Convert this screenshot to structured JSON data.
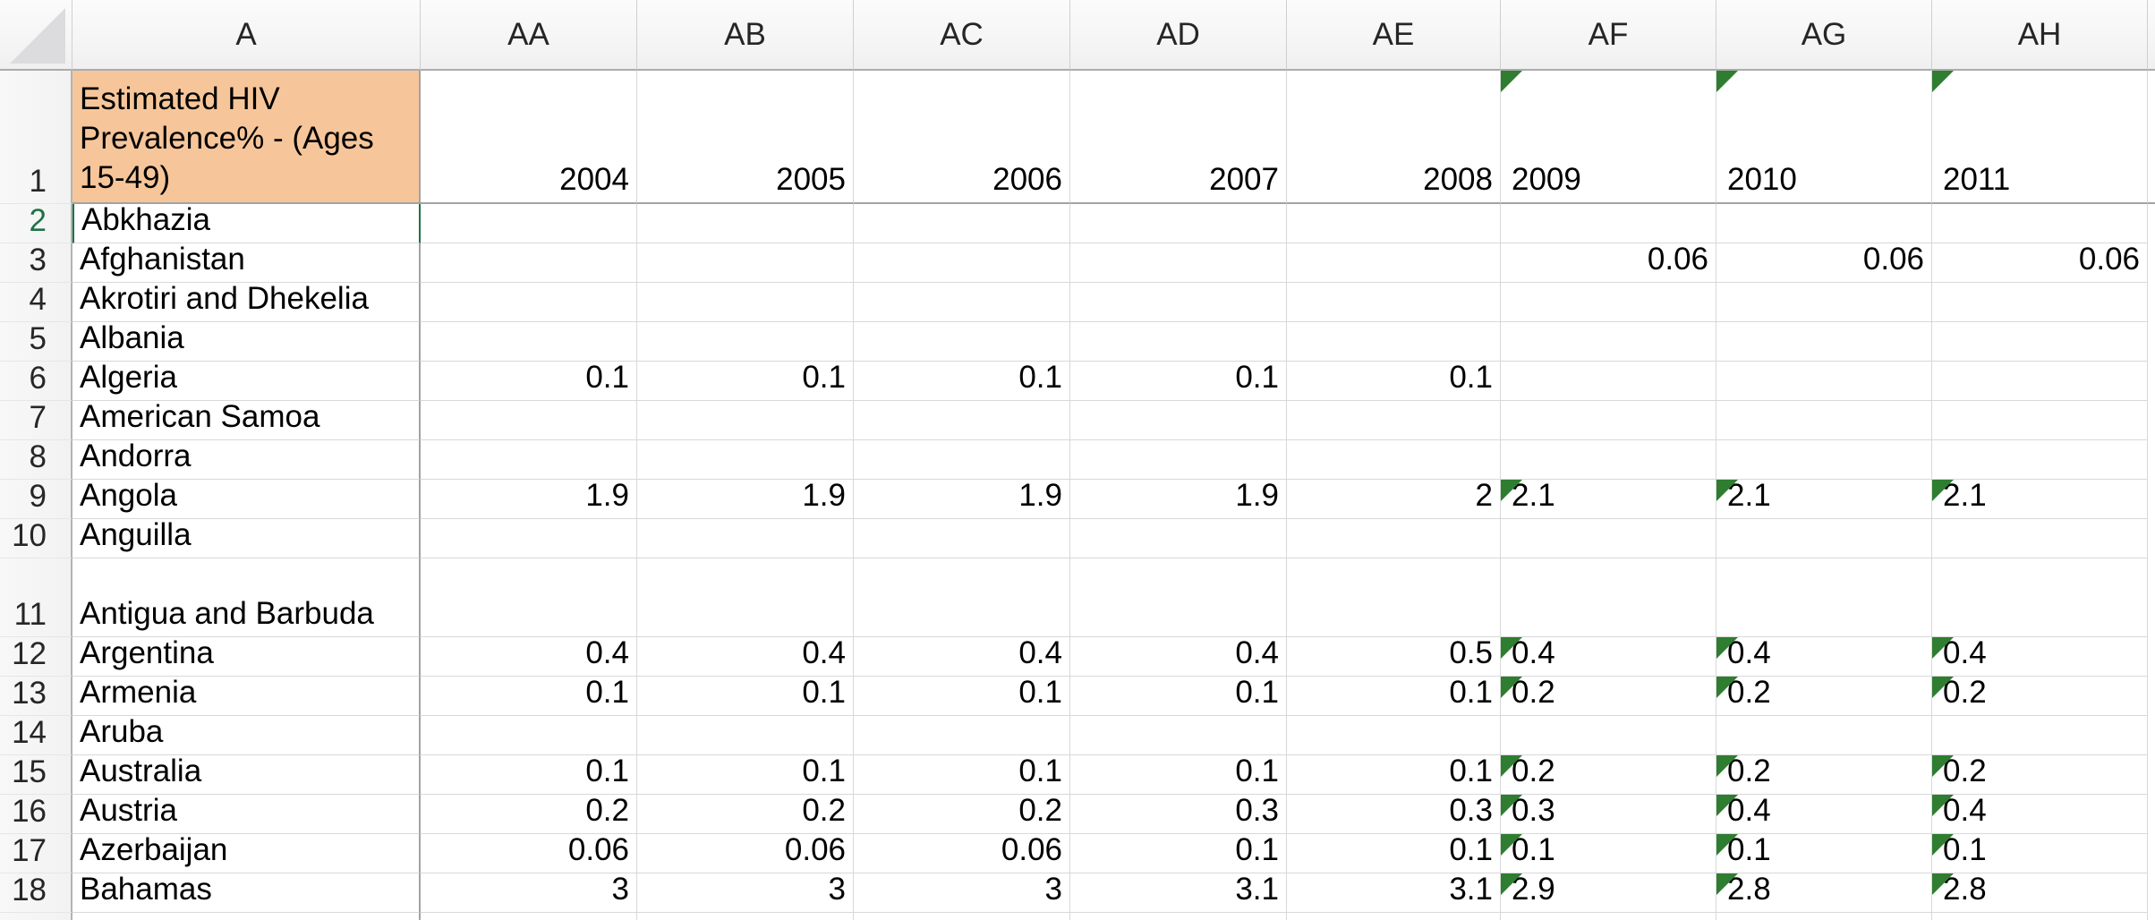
{
  "sheet": {
    "title_cell": {
      "column": "A",
      "row": "1",
      "text": "Estimated HIV Prevalence% - (Ages 15-49)"
    },
    "column_headers": [
      "A",
      "AA",
      "AB",
      "AC",
      "AD",
      "AE",
      "AF",
      "AG",
      "AH"
    ],
    "year_row": {
      "num": "1",
      "years": [
        {
          "label": "2004",
          "flag": false
        },
        {
          "label": "2005",
          "flag": false
        },
        {
          "label": "2006",
          "flag": false
        },
        {
          "label": "2007",
          "flag": false
        },
        {
          "label": "2008",
          "flag": false
        },
        {
          "label": "2009",
          "flag": true
        },
        {
          "label": "2010",
          "flag": true
        },
        {
          "label": "2011",
          "flag": true
        }
      ]
    },
    "rows": [
      {
        "num": "2",
        "country": "Abkhazia",
        "selected": true,
        "tall": false,
        "cells": [
          "",
          "",
          "",
          "",
          "",
          "",
          "",
          ""
        ],
        "flags": []
      },
      {
        "num": "3",
        "country": "Afghanistan",
        "selected": false,
        "tall": false,
        "cells": [
          "",
          "",
          "",
          "",
          "",
          "0.06",
          "0.06",
          "0.06"
        ],
        "flags": []
      },
      {
        "num": "4",
        "country": "Akrotiri and Dhekelia",
        "selected": false,
        "tall": false,
        "cells": [
          "",
          "",
          "",
          "",
          "",
          "",
          "",
          ""
        ],
        "flags": []
      },
      {
        "num": "5",
        "country": "Albania",
        "selected": false,
        "tall": false,
        "cells": [
          "",
          "",
          "",
          "",
          "",
          "",
          "",
          ""
        ],
        "flags": []
      },
      {
        "num": "6",
        "country": "Algeria",
        "selected": false,
        "tall": false,
        "cells": [
          "0.1",
          "0.1",
          "0.1",
          "0.1",
          "0.1",
          "",
          "",
          ""
        ],
        "flags": []
      },
      {
        "num": "7",
        "country": "American Samoa",
        "selected": false,
        "tall": false,
        "cells": [
          "",
          "",
          "",
          "",
          "",
          "",
          "",
          ""
        ],
        "flags": []
      },
      {
        "num": "8",
        "country": "Andorra",
        "selected": false,
        "tall": false,
        "cells": [
          "",
          "",
          "",
          "",
          "",
          "",
          "",
          ""
        ],
        "flags": []
      },
      {
        "num": "9",
        "country": "Angola",
        "selected": false,
        "tall": false,
        "cells": [
          "1.9",
          "1.9",
          "1.9",
          "1.9",
          "2",
          "2.1",
          "2.1",
          "2.1"
        ],
        "flags": [
          5,
          6,
          7
        ]
      },
      {
        "num": "10",
        "country": "Anguilla",
        "selected": false,
        "tall": false,
        "cells": [
          "",
          "",
          "",
          "",
          "",
          "",
          "",
          ""
        ],
        "flags": []
      },
      {
        "num": "11",
        "country": "Antigua and Barbuda",
        "selected": false,
        "tall": true,
        "cells": [
          "",
          "",
          "",
          "",
          "",
          "",
          "",
          ""
        ],
        "flags": []
      },
      {
        "num": "12",
        "country": "Argentina",
        "selected": false,
        "tall": false,
        "cells": [
          "0.4",
          "0.4",
          "0.4",
          "0.4",
          "0.5",
          "0.4",
          "0.4",
          "0.4"
        ],
        "flags": [
          5,
          6,
          7
        ]
      },
      {
        "num": "13",
        "country": "Armenia",
        "selected": false,
        "tall": false,
        "cells": [
          "0.1",
          "0.1",
          "0.1",
          "0.1",
          "0.1",
          "0.2",
          "0.2",
          "0.2"
        ],
        "flags": [
          5,
          6,
          7
        ]
      },
      {
        "num": "14",
        "country": "Aruba",
        "selected": false,
        "tall": false,
        "cells": [
          "",
          "",
          "",
          "",
          "",
          "",
          "",
          ""
        ],
        "flags": []
      },
      {
        "num": "15",
        "country": "Australia",
        "selected": false,
        "tall": false,
        "cells": [
          "0.1",
          "0.1",
          "0.1",
          "0.1",
          "0.1",
          "0.2",
          "0.2",
          "0.2"
        ],
        "flags": [
          5,
          6,
          7
        ]
      },
      {
        "num": "16",
        "country": "Austria",
        "selected": false,
        "tall": false,
        "cells": [
          "0.2",
          "0.2",
          "0.2",
          "0.3",
          "0.3",
          "0.3",
          "0.4",
          "0.4"
        ],
        "flags": [
          5,
          6,
          7
        ]
      },
      {
        "num": "17",
        "country": "Azerbaijan",
        "selected": false,
        "tall": false,
        "cells": [
          "0.06",
          "0.06",
          "0.06",
          "0.1",
          "0.1",
          "0.1",
          "0.1",
          "0.1"
        ],
        "flags": [
          5,
          6,
          7
        ]
      },
      {
        "num": "18",
        "country": "Bahamas",
        "selected": false,
        "tall": false,
        "cells": [
          "3",
          "3",
          "3",
          "3.1",
          "3.1",
          "2.9",
          "2.8",
          "2.8"
        ],
        "flags": [
          5,
          6,
          7
        ]
      }
    ],
    "active_cell": "A2"
  },
  "colors": {
    "a1_fill": "#f6c69a",
    "flag_green": "#2f7d31",
    "selection_green": "#1f7246",
    "gridline": "#d8d8d8",
    "pane_divider": "#a2a2a2",
    "header_border": "#ababab",
    "corner_triangle": "#dcdcde"
  },
  "icons": {
    "select_all_triangle": "bottom-right gray triangle",
    "error_flag_triangle": "top-left green triangle"
  }
}
